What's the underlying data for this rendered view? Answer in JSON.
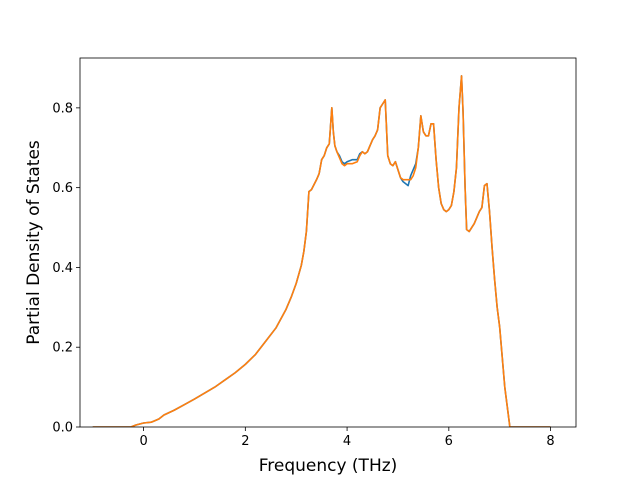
{
  "chart_data": {
    "type": "line",
    "title": "",
    "xlabel": "Frequency (THz)",
    "ylabel": "Partial Density of States",
    "xlim": [
      -1.25,
      8.5
    ],
    "ylim": [
      0.0,
      0.925
    ],
    "xticks": [
      0,
      2,
      4,
      6,
      8
    ],
    "yticks": [
      0.0,
      0.2,
      0.4,
      0.6,
      0.8
    ],
    "xtick_labels": [
      "0",
      "2",
      "4",
      "6",
      "8"
    ],
    "ytick_labels": [
      "0.0",
      "0.2",
      "0.4",
      "0.6",
      "0.8"
    ],
    "grid": false,
    "legend": "none",
    "colors": [
      "#1f77b4",
      "#ff7f0e"
    ],
    "series": [
      {
        "color": "#1f77b4",
        "x": [
          -1.0,
          -0.25,
          -0.15,
          0.0,
          0.15,
          0.3,
          0.4,
          0.6,
          0.8,
          1.0,
          1.2,
          1.4,
          1.6,
          1.8,
          2.0,
          2.2,
          2.4,
          2.6,
          2.8,
          2.9,
          3.0,
          3.1,
          3.15,
          3.2,
          3.25,
          3.3,
          3.4,
          3.45,
          3.5,
          3.55,
          3.6,
          3.65,
          3.7,
          3.73,
          3.76,
          3.8,
          3.85,
          3.9,
          3.95,
          4.0,
          4.1,
          4.2,
          4.25,
          4.3,
          4.35,
          4.4,
          4.5,
          4.55,
          4.6,
          4.65,
          4.7,
          4.75,
          4.8,
          4.85,
          4.9,
          4.95,
          5.0,
          5.05,
          5.1,
          5.15,
          5.2,
          5.25,
          5.3,
          5.35,
          5.4,
          5.45,
          5.5,
          5.55,
          5.6,
          5.65,
          5.7,
          5.75,
          5.8,
          5.85,
          5.9,
          5.95,
          6.0,
          6.05,
          6.1,
          6.15,
          6.2,
          6.25,
          6.28,
          6.32,
          6.35,
          6.4,
          6.45,
          6.5,
          6.55,
          6.6,
          6.65,
          6.7,
          6.75,
          6.8,
          6.85,
          6.9,
          6.95,
          7.0,
          7.1,
          7.2,
          7.25,
          7.3,
          7.4,
          7.6,
          7.8,
          8.0
        ],
        "y": [
          0.0,
          0.0,
          0.005,
          0.01,
          0.012,
          0.02,
          0.03,
          0.042,
          0.056,
          0.07,
          0.085,
          0.1,
          0.118,
          0.136,
          0.157,
          0.182,
          0.215,
          0.248,
          0.295,
          0.325,
          0.36,
          0.405,
          0.44,
          0.49,
          0.59,
          0.595,
          0.62,
          0.635,
          0.67,
          0.68,
          0.7,
          0.71,
          0.8,
          0.74,
          0.705,
          0.69,
          0.68,
          0.665,
          0.66,
          0.665,
          0.67,
          0.67,
          0.685,
          0.69,
          0.685,
          0.69,
          0.72,
          0.73,
          0.745,
          0.8,
          0.81,
          0.82,
          0.68,
          0.66,
          0.655,
          0.665,
          0.645,
          0.625,
          0.615,
          0.61,
          0.605,
          0.63,
          0.645,
          0.66,
          0.7,
          0.78,
          0.74,
          0.73,
          0.73,
          0.76,
          0.76,
          0.67,
          0.6,
          0.56,
          0.545,
          0.54,
          0.545,
          0.555,
          0.59,
          0.65,
          0.8,
          0.88,
          0.79,
          0.6,
          0.495,
          0.49,
          0.5,
          0.51,
          0.525,
          0.54,
          0.55,
          0.605,
          0.61,
          0.54,
          0.45,
          0.37,
          0.3,
          0.25,
          0.1,
          0.0,
          0.0,
          0.0,
          0.0,
          0.0,
          0.0,
          0.0
        ]
      },
      {
        "color": "#ff7f0e",
        "x": [
          -1.0,
          -0.25,
          -0.15,
          0.0,
          0.15,
          0.3,
          0.4,
          0.6,
          0.8,
          1.0,
          1.2,
          1.4,
          1.6,
          1.8,
          2.0,
          2.2,
          2.4,
          2.6,
          2.8,
          2.9,
          3.0,
          3.1,
          3.15,
          3.2,
          3.25,
          3.3,
          3.4,
          3.45,
          3.5,
          3.55,
          3.6,
          3.65,
          3.7,
          3.73,
          3.76,
          3.8,
          3.85,
          3.9,
          3.95,
          4.0,
          4.1,
          4.2,
          4.25,
          4.3,
          4.35,
          4.4,
          4.5,
          4.55,
          4.6,
          4.65,
          4.7,
          4.75,
          4.8,
          4.85,
          4.9,
          4.95,
          5.0,
          5.05,
          5.1,
          5.15,
          5.2,
          5.25,
          5.3,
          5.35,
          5.4,
          5.45,
          5.5,
          5.55,
          5.6,
          5.65,
          5.7,
          5.75,
          5.8,
          5.85,
          5.9,
          5.95,
          6.0,
          6.05,
          6.1,
          6.15,
          6.2,
          6.25,
          6.28,
          6.32,
          6.35,
          6.4,
          6.45,
          6.5,
          6.55,
          6.6,
          6.65,
          6.7,
          6.75,
          6.8,
          6.85,
          6.9,
          6.95,
          7.0,
          7.1,
          7.2,
          7.25,
          7.3,
          7.4,
          7.6,
          7.8,
          8.0
        ],
        "y": [
          0.0,
          0.0,
          0.005,
          0.01,
          0.012,
          0.02,
          0.03,
          0.042,
          0.056,
          0.07,
          0.085,
          0.1,
          0.118,
          0.136,
          0.157,
          0.182,
          0.215,
          0.248,
          0.295,
          0.325,
          0.36,
          0.405,
          0.44,
          0.49,
          0.59,
          0.595,
          0.62,
          0.635,
          0.67,
          0.68,
          0.7,
          0.71,
          0.8,
          0.74,
          0.705,
          0.69,
          0.675,
          0.66,
          0.655,
          0.66,
          0.66,
          0.665,
          0.68,
          0.69,
          0.685,
          0.69,
          0.72,
          0.73,
          0.745,
          0.8,
          0.81,
          0.82,
          0.68,
          0.66,
          0.655,
          0.665,
          0.645,
          0.625,
          0.62,
          0.62,
          0.62,
          0.62,
          0.63,
          0.65,
          0.7,
          0.78,
          0.74,
          0.73,
          0.73,
          0.76,
          0.76,
          0.67,
          0.6,
          0.56,
          0.545,
          0.54,
          0.545,
          0.555,
          0.59,
          0.65,
          0.8,
          0.88,
          0.79,
          0.6,
          0.495,
          0.49,
          0.5,
          0.51,
          0.525,
          0.54,
          0.55,
          0.605,
          0.61,
          0.54,
          0.45,
          0.37,
          0.3,
          0.25,
          0.1,
          0.0,
          0.0,
          0.0,
          0.0,
          0.0,
          0.0,
          0.0
        ]
      }
    ]
  }
}
